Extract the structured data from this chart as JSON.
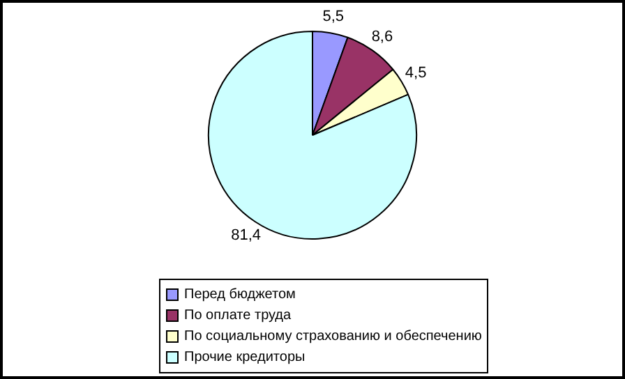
{
  "chart_data": {
    "type": "pie",
    "categories": [
      "Перед бюджетом",
      "По оплате труда",
      "По социальному страхованию и обеспечению",
      "Прочие кредиторы"
    ],
    "values": [
      5.5,
      8.6,
      4.5,
      81.4
    ],
    "value_labels": [
      "5,5",
      "8,6",
      "4,5",
      "81,4"
    ],
    "colors": [
      "#9999ff",
      "#993366",
      "#ffffcc",
      "#ccffff"
    ],
    "legend": "bottom"
  }
}
